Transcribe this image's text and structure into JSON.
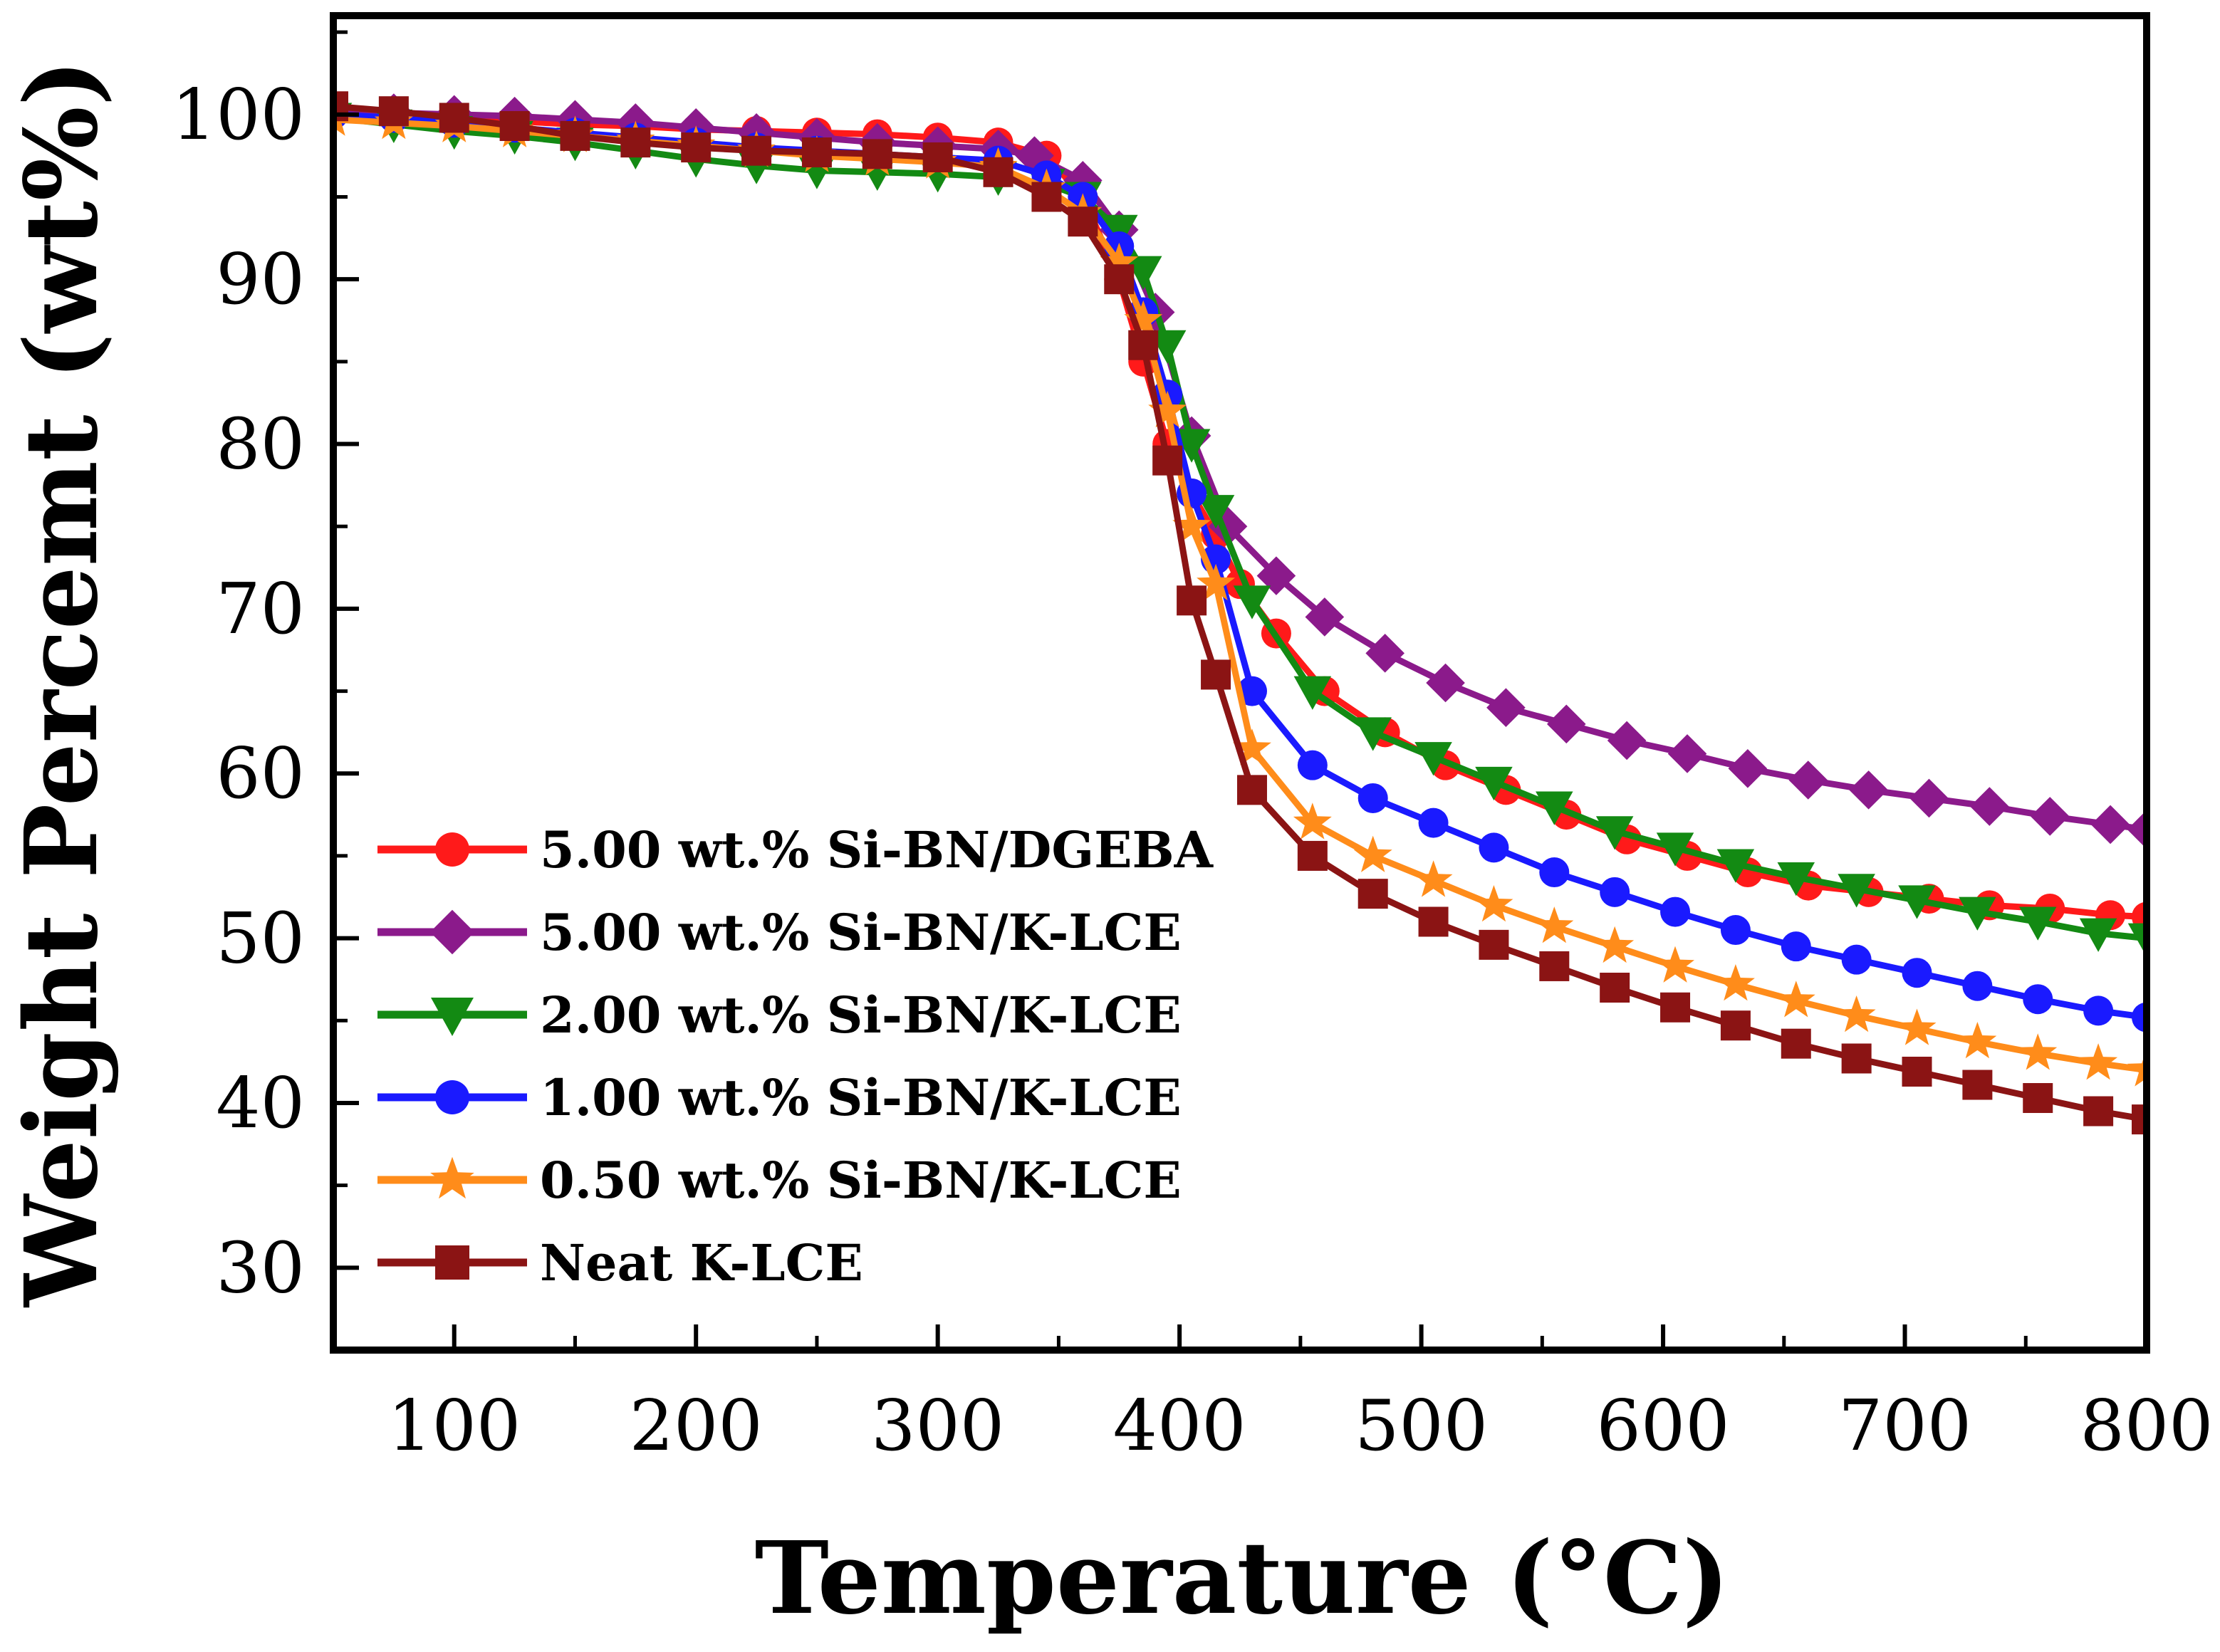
{
  "chart_data": {
    "type": "line",
    "title": "",
    "xlabel": "Temperature",
    "xlabel_unit": "(°C)",
    "ylabel": "Weight Percemt (wt%)",
    "xlim": [
      50,
      800
    ],
    "ylim": [
      25,
      106
    ],
    "x_ticks": [
      100,
      200,
      300,
      400,
      500,
      600,
      700,
      800
    ],
    "y_ticks": [
      30,
      40,
      50,
      60,
      70,
      80,
      90,
      100
    ],
    "x_minor_ticks": [
      50,
      150,
      250,
      350,
      450,
      550,
      650,
      750
    ],
    "y_minor_ticks": [
      35,
      45,
      55,
      65,
      75,
      85,
      95,
      105
    ],
    "legend_position": "lower-left",
    "series": [
      {
        "name": "5.00 wt.% Si-BN/DGEBA",
        "color": "#ff1a1a",
        "marker": "circle",
        "x": [
          50,
          75,
          100,
          125,
          150,
          175,
          200,
          225,
          250,
          275,
          300,
          325,
          345,
          360,
          375,
          385,
          395,
          405,
          415,
          425,
          440,
          460,
          485,
          510,
          535,
          560,
          585,
          610,
          635,
          660,
          685,
          710,
          735,
          760,
          785,
          800
        ],
        "y": [
          100.2,
          100.0,
          99.8,
          99.6,
          99.4,
          99.3,
          99.1,
          99.0,
          98.9,
          98.8,
          98.6,
          98.3,
          97.5,
          95.0,
          90.0,
          85.0,
          80.0,
          77.0,
          74.5,
          71.5,
          68.5,
          65.0,
          62.5,
          60.5,
          59.0,
          57.5,
          56.0,
          55.0,
          54.0,
          53.2,
          52.8,
          52.4,
          52.0,
          51.8,
          51.4,
          51.3
        ]
      },
      {
        "name": "5.00 wt.% Si-BN/K-LCE",
        "color": "#8b1a8b",
        "marker": "diamond",
        "x": [
          50,
          75,
          100,
          125,
          150,
          175,
          200,
          225,
          250,
          275,
          300,
          325,
          340,
          360,
          375,
          390,
          405,
          420,
          440,
          460,
          485,
          510,
          535,
          560,
          585,
          610,
          635,
          660,
          685,
          710,
          735,
          760,
          785,
          800
        ],
        "y": [
          100.2,
          100.1,
          100.0,
          99.9,
          99.7,
          99.5,
          99.2,
          98.9,
          98.6,
          98.3,
          98.1,
          97.9,
          97.5,
          96.0,
          93.0,
          88.0,
          80.5,
          75.0,
          72.0,
          69.5,
          67.3,
          65.5,
          64.0,
          63.0,
          62.0,
          61.2,
          60.3,
          59.6,
          59.0,
          58.5,
          58.0,
          57.4,
          56.9,
          56.6
        ]
      },
      {
        "name": "2.00 wt.% Si-BN/K-LCE",
        "color": "#138a13",
        "marker": "triangle-down",
        "x": [
          50,
          75,
          100,
          125,
          150,
          175,
          200,
          225,
          250,
          275,
          300,
          325,
          345,
          360,
          375,
          385,
          395,
          405,
          415,
          430,
          455,
          480,
          505,
          530,
          555,
          580,
          605,
          630,
          655,
          680,
          705,
          730,
          755,
          780,
          800
        ],
        "y": [
          99.8,
          99.4,
          99.0,
          98.7,
          98.3,
          97.8,
          97.3,
          96.9,
          96.6,
          96.5,
          96.4,
          96.2,
          95.8,
          95.0,
          93.0,
          90.5,
          86.0,
          80.0,
          76.0,
          70.5,
          65.0,
          62.5,
          61.0,
          59.5,
          58.0,
          56.5,
          55.5,
          54.5,
          53.7,
          53.0,
          52.3,
          51.6,
          51.0,
          50.3,
          50.0
        ]
      },
      {
        "name": "1.00 wt.% Si-BN/K-LCE",
        "color": "#1a1aff",
        "marker": "circle",
        "x": [
          50,
          75,
          100,
          125,
          150,
          175,
          200,
          225,
          250,
          275,
          300,
          325,
          345,
          360,
          375,
          385,
          395,
          405,
          415,
          430,
          455,
          480,
          505,
          530,
          555,
          580,
          605,
          630,
          655,
          680,
          705,
          730,
          755,
          780,
          800
        ],
        "y": [
          100.0,
          99.8,
          99.5,
          99.2,
          98.9,
          98.6,
          98.3,
          98.0,
          97.8,
          97.6,
          97.4,
          97.2,
          96.3,
          95.0,
          92.0,
          88.0,
          83.0,
          77.0,
          73.0,
          65.0,
          60.5,
          58.5,
          57.0,
          55.5,
          54.0,
          52.8,
          51.6,
          50.5,
          49.5,
          48.7,
          47.9,
          47.1,
          46.3,
          45.6,
          45.2
        ]
      },
      {
        "name": "0.50 wt.% Si-BN/K-LCE",
        "color": "#ff8c1a",
        "marker": "star",
        "x": [
          50,
          75,
          100,
          125,
          150,
          175,
          200,
          225,
          250,
          275,
          300,
          325,
          345,
          360,
          375,
          385,
          395,
          405,
          415,
          430,
          455,
          480,
          505,
          530,
          555,
          580,
          605,
          630,
          655,
          680,
          705,
          730,
          755,
          780,
          800
        ],
        "y": [
          99.7,
          99.5,
          99.3,
          99.0,
          98.7,
          98.4,
          98.1,
          97.8,
          97.5,
          97.3,
          97.1,
          96.8,
          95.5,
          94.0,
          91.0,
          87.5,
          82.0,
          75.0,
          71.5,
          61.5,
          57.0,
          55.0,
          53.5,
          52.0,
          50.7,
          49.5,
          48.3,
          47.2,
          46.2,
          45.3,
          44.5,
          43.7,
          43.0,
          42.4,
          42.0
        ]
      },
      {
        "name": "Neat K-LCE",
        "color": "#8b1414",
        "marker": "square",
        "x": [
          50,
          75,
          100,
          125,
          150,
          175,
          200,
          225,
          250,
          275,
          300,
          325,
          345,
          360,
          375,
          385,
          395,
          405,
          415,
          430,
          455,
          480,
          505,
          530,
          555,
          580,
          605,
          630,
          655,
          680,
          705,
          730,
          755,
          780,
          800
        ],
        "y": [
          100.5,
          100.2,
          99.8,
          99.3,
          98.7,
          98.3,
          98.0,
          97.8,
          97.7,
          97.6,
          97.4,
          96.5,
          95.0,
          93.5,
          90.0,
          86.0,
          79.0,
          70.5,
          66.0,
          59.0,
          55.0,
          52.7,
          51.0,
          49.6,
          48.3,
          47.0,
          45.8,
          44.7,
          43.6,
          42.7,
          41.9,
          41.1,
          40.3,
          39.5,
          39.0
        ]
      }
    ]
  }
}
